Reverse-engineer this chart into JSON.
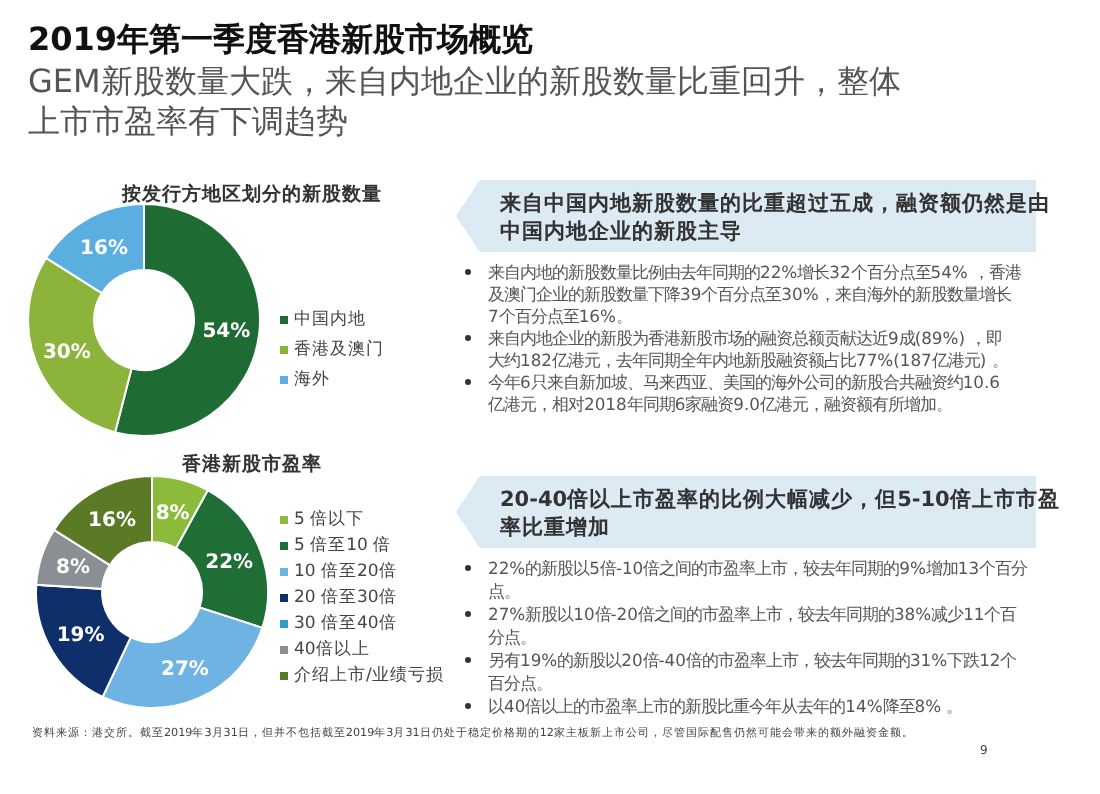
{
  "chart_data": [
    {
      "type": "other",
      "title": "2019年第一季度香港新股市场概览",
      "subtitle": "GEM新股数量大跌，来自内地企业的新股数量比重回升，整体上市市盈率有下调趋势",
      "annotations": [
        "资料来源：港交所。截至2019年3月31日，但并不包括截至2019年3月31日仍处于稳定价格期的12家主板新上市公司，尽管国际配售仍然可能会带来的额外融资金额。",
        "9"
      ]
    },
    {
      "type": "donut",
      "title": "按发行方地区划分的新股数量",
      "categories": [
        "中国内地",
        "香港及澳门",
        "海外"
      ],
      "values": [
        54,
        30,
        16
      ],
      "colors": [
        "#1e6b33",
        "#8cb43a",
        "#5aaee0"
      ],
      "value_labels": [
        "54%",
        "30%",
        "16%"
      ],
      "legend": "right"
    },
    {
      "type": "other",
      "title": "来自中国内地新股数量的比重超过五成，融资额仍然是由中国内地企业的新股主导",
      "annotations": [
        "来自内地的新股数量比例由去年同期的22%增长32个百分点至54% ，香港及澳门企业的新股数量下降39个百分点至30%，来自海外的新股数量增长7个百分点至16%。",
        "来自内地企业的新股为香港新股市场的融资总额贡献达近9成(89%) ，即大约182亿港元，去年同期全年内地新股融资额占比77%(187亿港元) 。",
        "今年6只来自新加坡、马来西亚、美国的海外公司的新股合共融资约10.6亿港元，相对2018年同期6家融资9.0亿港元，融资额有所增加。"
      ]
    },
    {
      "type": "donut",
      "title": "香港新股市盈率",
      "categories": [
        "5 倍以下",
        "5 倍至10 倍",
        "10 倍至20倍",
        "20 倍至30倍",
        "30 倍至40倍",
        "40倍以上",
        "介绍上市/业绩亏损"
      ],
      "values": [
        8,
        22,
        27,
        19,
        0,
        8,
        16
      ],
      "colors": [
        "#8cbb3c",
        "#1e6e35",
        "#6fb3e4",
        "#0f2f6b",
        "#2f9fc6",
        "#8a8f94",
        "#5a7a26"
      ],
      "value_labels": [
        "8%",
        "22%",
        "27%",
        "19%",
        null,
        "8%",
        "16%"
      ],
      "legend": "right"
    },
    {
      "type": "other",
      "title": "20-40倍以上市盈率的比例大幅减少，但5-10倍上市市盈率比重增加",
      "annotations": [
        "22%的新股以5倍-10倍之间的市盈率上市，较去年同期的9%增加13个百分点。",
        "27%新股以10倍-20倍之间的市盈率上市，较去年同期的38%减少11个百分点。",
        "另有19%的新股以20倍-40倍的市盈率上市，较去年同期的31%下跌12个百分点。",
        "以40倍以上的市盈率上市的新股比重今年从去年的14%降至8% 。"
      ]
    }
  ]
}
